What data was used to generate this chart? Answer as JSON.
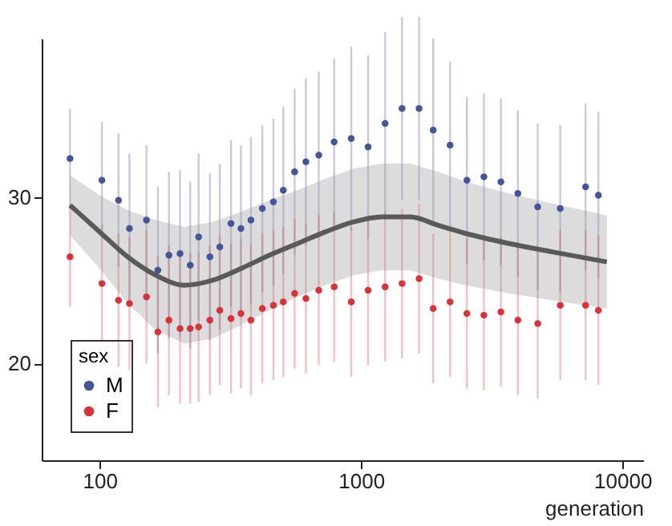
{
  "chart_data": {
    "type": "scatter",
    "xlabel": "generation",
    "legend_title": "sex",
    "legend": "bottom left",
    "log": "x",
    "grid": false,
    "marker": "circle",
    "xlim": [
      60,
      12000
    ],
    "ylim": [
      14.2,
      39.5
    ],
    "xticks": [
      100,
      1000,
      10000
    ],
    "yticks": [
      20,
      30
    ],
    "x": [
      77,
      102,
      118,
      130,
      151,
      167,
      184,
      203,
      222,
      239,
      264,
      288,
      318,
      347,
      379,
      419,
      462,
      504,
      557,
      615,
      689,
      789,
      917,
      1064,
      1236,
      1435,
      1667,
      1888,
      2191,
      2541,
      2951,
      3428,
      3981,
      4742,
      5781,
      7228,
      8091
    ],
    "series": [
      {
        "name": "M",
        "color": "#46549a",
        "values": [
          32.3,
          31.0,
          29.8,
          28.1,
          28.6,
          25.6,
          26.5,
          26.6,
          25.9,
          27.6,
          26.4,
          27.0,
          28.4,
          28.1,
          28.6,
          29.3,
          29.7,
          30.4,
          31.5,
          32.1,
          32.5,
          33.3,
          33.5,
          33.0,
          34.4,
          35.3,
          35.3,
          34.0,
          33.1,
          31.0,
          31.2,
          30.9,
          30.2,
          29.4,
          29.3,
          30.6,
          30.1
        ],
        "errors": [
          3,
          3.5,
          4,
          4.5,
          4.5,
          5,
          5,
          5,
          5,
          5,
          5,
          5,
          5,
          5,
          5,
          5,
          5,
          5,
          5,
          5,
          5,
          5,
          5.5,
          5.5,
          5.5,
          5.5,
          5.5,
          5.5,
          5,
          5,
          5,
          5,
          5,
          5,
          5,
          5,
          5
        ]
      },
      {
        "name": "F",
        "color": "#d8333c",
        "values": [
          26.4,
          24.8,
          23.8,
          23.6,
          24.0,
          21.9,
          22.6,
          22.1,
          22.1,
          22.2,
          22.6,
          23.2,
          22.7,
          23.0,
          22.6,
          23.3,
          23.5,
          23.7,
          24.2,
          23.9,
          24.4,
          24.6,
          23.7,
          24.4,
          24.6,
          24.8,
          25.1,
          23.3,
          23.7,
          23.0,
          22.9,
          23.1,
          22.6,
          22.4,
          23.5,
          23.5,
          23.2
        ],
        "errors": [
          3,
          3.5,
          4,
          4,
          4,
          4.5,
          4.5,
          4.5,
          4.5,
          4.5,
          4.5,
          4.5,
          4.5,
          4.5,
          4.5,
          4.5,
          4.5,
          4.5,
          4.5,
          4.5,
          4.5,
          4.5,
          4.5,
          4.5,
          4.5,
          4.5,
          4.5,
          4.5,
          4.5,
          4.5,
          4.5,
          4.5,
          4.5,
          4.5,
          4.5,
          4.5,
          4.5
        ]
      },
      {
        "type": "line",
        "marker": "none",
        "color": "#5a5a5a",
        "x": [
          77,
          100,
          128,
          164,
          211,
          271,
          347,
          446,
          571,
          731,
          937,
          1200,
          1539,
          1970,
          2523,
          3686,
          5387,
          8715
        ],
        "values": [
          29.5,
          27.9,
          26.4,
          25.3,
          24.7,
          25.0,
          25.7,
          26.5,
          27.2,
          27.9,
          28.5,
          28.8,
          28.8,
          28.3,
          27.8,
          27.2,
          26.7,
          26.1
        ],
        "lower": [
          27.7,
          25.7,
          23.6,
          22.0,
          21.2,
          21.5,
          22.3,
          23.2,
          24.0,
          24.7,
          25.3,
          25.6,
          25.6,
          25.1,
          24.7,
          24.2,
          23.8,
          23.3
        ],
        "upper": [
          31.3,
          30.1,
          29.2,
          28.6,
          28.2,
          28.5,
          29.1,
          29.8,
          30.4,
          31.1,
          31.7,
          32.0,
          32.0,
          31.5,
          30.9,
          30.2,
          29.6,
          28.9
        ]
      }
    ]
  }
}
